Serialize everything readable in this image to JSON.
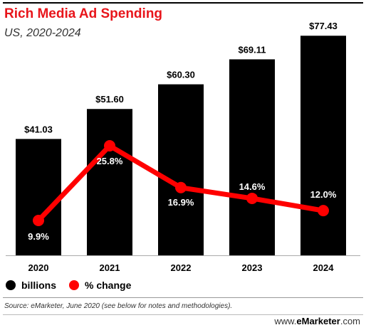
{
  "title": "Rich Media Ad Spending",
  "subtitle": "US, 2020-2024",
  "chart_data": {
    "type": "bar",
    "categories": [
      "2020",
      "2021",
      "2022",
      "2023",
      "2024"
    ],
    "series": [
      {
        "name": "billions",
        "type": "bar",
        "values": [
          41.03,
          51.6,
          60.3,
          69.11,
          77.43
        ],
        "labels": [
          "$41.03",
          "$51.60",
          "$60.30",
          "$69.11",
          "$77.43"
        ],
        "color": "#000000"
      },
      {
        "name": "% change",
        "type": "line",
        "values": [
          9.9,
          25.8,
          16.9,
          14.6,
          12.0
        ],
        "labels": [
          "9.9%",
          "25.8%",
          "16.9%",
          "14.6%",
          "12.0%"
        ],
        "color": "#ff0000"
      }
    ],
    "ylim_bars": [
      0,
      80
    ],
    "ylim_line": [
      0,
      35
    ],
    "grid": false,
    "legend_position": "bottom-left"
  },
  "legend": {
    "bars_label": "billions",
    "line_label": "% change"
  },
  "source": "Source: eMarketer, June 2020 (see below for notes and methodologies).",
  "brand": {
    "prefix": "www.",
    "name": "eMarketer",
    "suffix": ".com"
  }
}
